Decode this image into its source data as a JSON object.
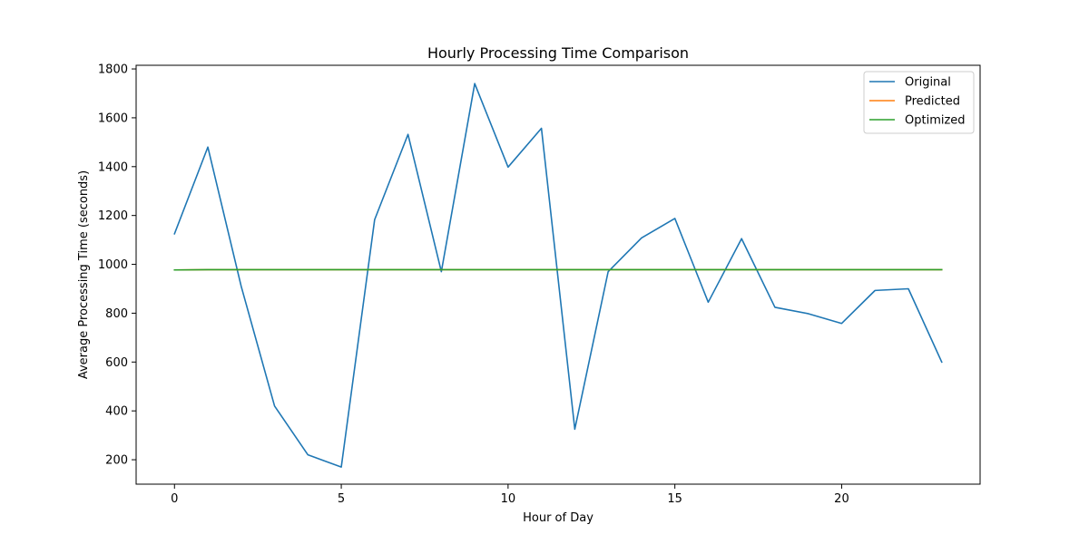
{
  "chart_data": {
    "type": "line",
    "title": "Hourly Processing Time Comparison",
    "xlabel": "Hour of Day",
    "ylabel": "Average Processing Time (seconds)",
    "xlim": [
      -1.15,
      24.15
    ],
    "ylim": [
      100,
      1815
    ],
    "xticks": [
      0,
      5,
      10,
      15,
      20
    ],
    "yticks": [
      200,
      400,
      600,
      800,
      1000,
      1200,
      1400,
      1600,
      1800
    ],
    "x": [
      0,
      1,
      2,
      3,
      4,
      5,
      6,
      7,
      8,
      9,
      10,
      11,
      12,
      13,
      14,
      15,
      16,
      17,
      18,
      19,
      20,
      21,
      22,
      23
    ],
    "series": [
      {
        "name": "Original",
        "color": "#1f77b4",
        "values": [
          1125,
          1480,
          910,
          420,
          220,
          170,
          1183,
          1532,
          970,
          1740,
          1398,
          1557,
          325,
          970,
          1108,
          1188,
          845,
          1105,
          824,
          798,
          758,
          893,
          900,
          600
        ]
      },
      {
        "name": "Predicted",
        "color": "#ff7f0e",
        "values": [
          977,
          978,
          978,
          978,
          978,
          978,
          978,
          978,
          978,
          978,
          978,
          978,
          978,
          978,
          978,
          978,
          978,
          978,
          978,
          978,
          978,
          978,
          978,
          978
        ]
      },
      {
        "name": "Optimized",
        "color": "#2ca02c",
        "values": [
          977,
          978,
          978,
          978,
          978,
          978,
          978,
          978,
          978,
          978,
          978,
          978,
          978,
          978,
          978,
          978,
          978,
          978,
          978,
          978,
          978,
          978,
          978,
          978
        ]
      }
    ],
    "legend_position": "top-right",
    "grid": false
  }
}
